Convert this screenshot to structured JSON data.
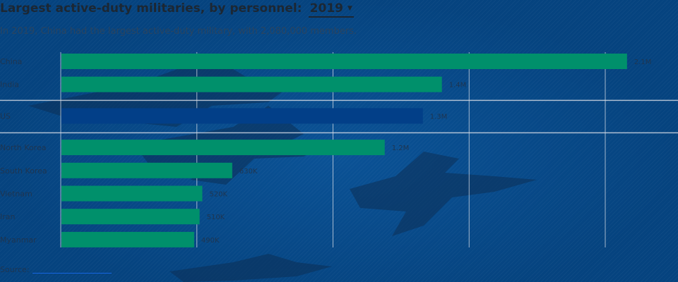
{
  "header": {
    "title": "Largest active-duty militaries, by personnel:",
    "year_selected": "2019",
    "caret": "▼",
    "subtitle": "In 2019, China had the largest active-duty military, with 2,080,000 members."
  },
  "footer": {
    "source_label": "Source:"
  },
  "colors": {
    "background": "#06498a",
    "bar": "#00906b",
    "bar_highlight": "#023f88",
    "gridline": "#d8dde6",
    "label_text": "#1f3550",
    "value_text": "#1f3550"
  },
  "icons": {
    "year_dropdown": "chevron-down-icon",
    "background": "fighter-jet-silhouettes"
  },
  "chart_data": {
    "type": "bar",
    "orientation": "horizontal",
    "title": "Largest active-duty militaries, by personnel: 2019",
    "categories": [
      "China",
      "India",
      "US",
      "North Korea",
      "South Korea",
      "Vietnam",
      "Iran",
      "Myanmar"
    ],
    "values": [
      2080000,
      1400000,
      1330000,
      1190000,
      630000,
      520000,
      510000,
      490000
    ],
    "value_labels": [
      "2.1M",
      "1.4M",
      "1.3M",
      "1.2M",
      "630K",
      "520K",
      "510K",
      "490K"
    ],
    "highlight": "US",
    "xlim": [
      0,
      2200000
    ],
    "grid": true,
    "gridline_values": [
      0,
      500000,
      1000000,
      1500000,
      2000000
    ],
    "xlabel": "",
    "ylabel": ""
  }
}
